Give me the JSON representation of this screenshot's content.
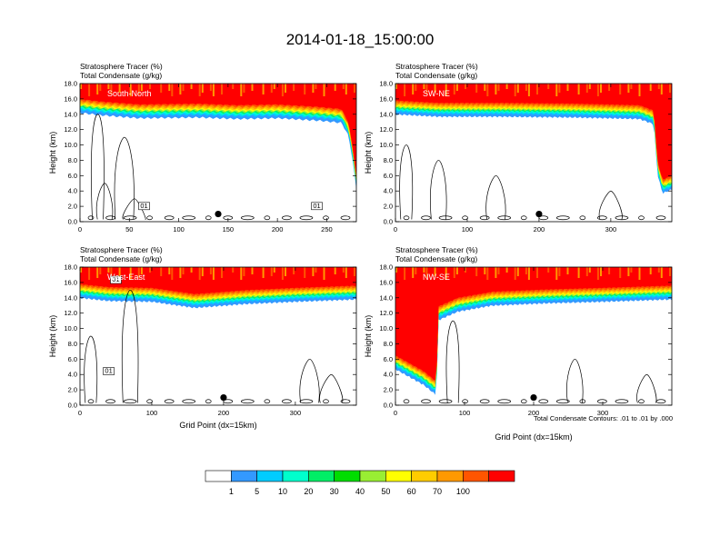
{
  "title": "2014-01-18_15:00:00",
  "note": "Total Condensate Contours: .01 to .01 by .000",
  "chart_data": {
    "type": "heatmap",
    "x_label": "Grid Point (dx=15km)",
    "y_label": "Height (km)",
    "y_range": [
      0,
      18
    ],
    "y_ticks": [
      "0.0",
      "2.0",
      "4.0",
      "6.0",
      "8.0",
      "10.0",
      "12.0",
      "14.0",
      "16.0",
      "18.0"
    ],
    "field_label": "Stratosphere Tracer",
    "field_units": "(%)",
    "contour_label": "Total Condensate",
    "contour_units": "(g/kg)",
    "colorbar": {
      "levels": [
        "1",
        "5",
        "10",
        "20",
        "30",
        "40",
        "50",
        "60",
        "70",
        "100"
      ],
      "colors": [
        "#ffffff",
        "#3399ff",
        "#00ccff",
        "#00ffcc",
        "#00ee66",
        "#00dd00",
        "#99ee33",
        "#ffff00",
        "#ffcc00",
        "#ff9900",
        "#ff5500",
        "#ff0000"
      ]
    },
    "panels": [
      {
        "name": "South-North",
        "x_range": [
          0,
          280
        ],
        "x_ticks": [
          "0",
          "50",
          "100",
          "150",
          "200",
          "250"
        ],
        "x_tick_values": [
          0,
          50,
          100,
          150,
          200,
          250
        ],
        "tracer_base": [
          [
            0,
            16.0
          ],
          [
            20,
            15.7
          ],
          [
            60,
            15.3
          ],
          [
            120,
            15.4
          ],
          [
            160,
            15.2
          ],
          [
            200,
            15.3
          ],
          [
            240,
            15.0
          ],
          [
            265,
            14.7
          ],
          [
            272,
            13.0
          ],
          [
            276,
            10.0
          ],
          [
            278,
            8.0
          ],
          [
            280,
            6.0
          ]
        ],
        "marker_x": 140,
        "contour_tags": [
          "01",
          "01"
        ]
      },
      {
        "name": "SW-NE",
        "x_range": [
          0,
          385
        ],
        "x_ticks": [
          "0",
          "100",
          "200",
          "300"
        ],
        "x_tick_values": [
          0,
          100,
          200,
          300
        ],
        "tracer_base": [
          [
            0,
            15.8
          ],
          [
            60,
            15.5
          ],
          [
            150,
            15.5
          ],
          [
            250,
            15.4
          ],
          [
            340,
            15.2
          ],
          [
            360,
            14.5
          ],
          [
            365,
            8.0
          ],
          [
            372,
            5.5
          ],
          [
            385,
            6.0
          ]
        ],
        "marker_x": 200,
        "contour_tags": []
      },
      {
        "name": "West-East",
        "x_range": [
          0,
          385
        ],
        "x_ticks": [
          "0",
          "100",
          "200",
          "300"
        ],
        "x_tick_values": [
          0,
          100,
          200,
          300
        ],
        "tracer_base": [
          [
            0,
            15.8
          ],
          [
            40,
            15.4
          ],
          [
            100,
            15.3
          ],
          [
            160,
            14.5
          ],
          [
            230,
            15.0
          ],
          [
            300,
            15.3
          ],
          [
            385,
            15.6
          ]
        ],
        "marker_x": 200,
        "contour_tags": [
          "01",
          "01"
        ]
      },
      {
        "name": "NW-SE",
        "x_range": [
          0,
          400
        ],
        "x_ticks": [
          "0",
          "100",
          "200",
          "300"
        ],
        "x_tick_values": [
          0,
          100,
          200,
          300
        ],
        "tracer_base": [
          [
            0,
            6.5
          ],
          [
            20,
            5.5
          ],
          [
            40,
            4.5
          ],
          [
            58,
            3.2
          ],
          [
            62,
            8.0
          ],
          [
            55,
            11.5
          ],
          [
            60,
            12.8
          ],
          [
            90,
            14.0
          ],
          [
            140,
            14.8
          ],
          [
            220,
            15.1
          ],
          [
            300,
            15.3
          ],
          [
            400,
            15.6
          ]
        ],
        "marker_x": 200,
        "contour_tags": []
      }
    ]
  }
}
